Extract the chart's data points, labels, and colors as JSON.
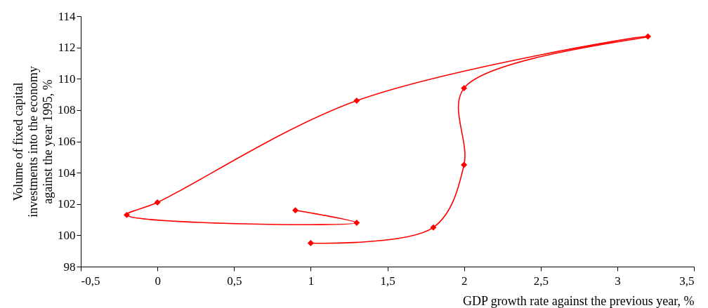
{
  "chart_data": {
    "type": "line",
    "xlabel": "GDP growth rate against the previous year, %",
    "ylabel": "Volume of fixed capital investments into the economy against the year 1995, %",
    "series": [
      {
        "color": "#ff0000",
        "x": [
          1.0,
          1.8,
          2.0,
          2.0,
          3.2,
          1.3,
          0.0,
          -0.2,
          1.3,
          0.9
        ],
        "values": [
          99.5,
          100.5,
          104.5,
          109.4,
          112.7,
          108.6,
          102.1,
          101.3,
          100.8,
          101.6
        ]
      }
    ],
    "xlim": [
      -0.5,
      3.5
    ],
    "xticks": [
      {
        "value": -0.5,
        "label": "-0,5"
      },
      0,
      {
        "value": 0.5,
        "label": "0,5"
      },
      1,
      {
        "value": 1.5,
        "label": "1,5"
      },
      2,
      {
        "value": 2.5,
        "label": "2,5"
      },
      3,
      {
        "value": 3.5,
        "label": "3,5"
      }
    ],
    "ylim": [
      98,
      114
    ],
    "yticks": [
      98,
      100,
      102,
      104,
      106,
      108,
      110,
      112,
      114
    ],
    "grid": false,
    "legend": false,
    "marker": "diamond",
    "line_style": "solid"
  }
}
